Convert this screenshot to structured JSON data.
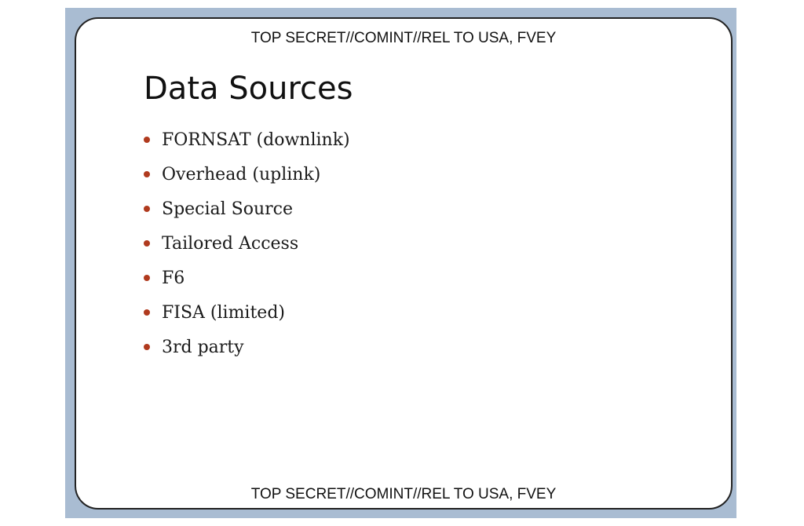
{
  "classification_banner": "TOP SECRET//COMINT//REL TO USA, FVEY",
  "title": "Data Sources",
  "bullets": [
    "FORNSAT (downlink)",
    "Overhead (uplink)",
    "Special Source",
    "Tailored Access",
    "F6",
    "FISA (limited)",
    "3rd party"
  ],
  "colors": {
    "frame": "#a9bcd2",
    "bullet": "#b03a1e",
    "text": "#111111"
  }
}
